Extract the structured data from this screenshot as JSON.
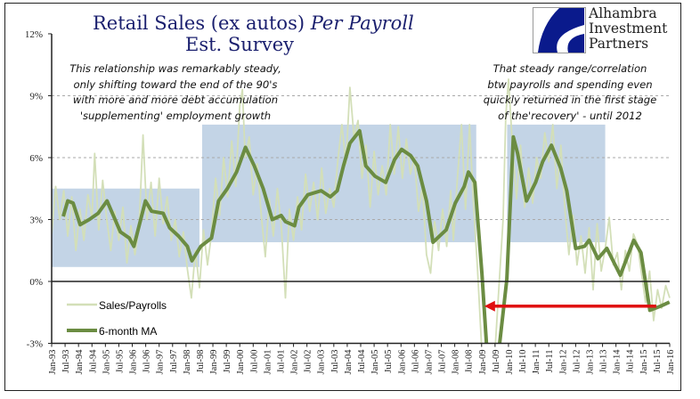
{
  "title_main": "Retail Sales (ex autos) ",
  "title_italic": "Per Payroll",
  "title_sub": "Est. Survey",
  "note_left": [
    "This relationship was remarkably steady,",
    "only shifting toward the end of the 90's",
    "with more and  more debt accumulation",
    "'supplementing' employment growth"
  ],
  "note_right": [
    "That steady range/correlation",
    "btw payrolls and spending even",
    "quickly returned in the first stage",
    "of the'recovery' - until 2012"
  ],
  "logo": {
    "lines": [
      "Alhambra",
      "Investment",
      "Partners"
    ],
    "color": "#0a1a8c"
  },
  "chart_data": {
    "type": "line",
    "ylim": [
      -3,
      12
    ],
    "xlim": [
      1993.0,
      2016.0
    ],
    "y_ticks": [
      -3,
      0,
      3,
      6,
      9,
      12
    ],
    "y_tick_labels": [
      "-3%",
      "0%",
      "3%",
      "6%",
      "9%",
      "12%"
    ],
    "x_tick_labels": [
      "Jan-93",
      "Jul-93",
      "Jan-94",
      "Jul-94",
      "Jan-95",
      "Jul-95",
      "Jan-96",
      "Jul-96",
      "Jan-97",
      "Jul-97",
      "Jan-98",
      "Jul-98",
      "Jan-99",
      "Jul-99",
      "Jan-00",
      "Jul-00",
      "Jan-01",
      "Jul-01",
      "Jan-02",
      "Jul-02",
      "Jan-03",
      "Jul-03",
      "Jan-04",
      "Jul-04",
      "Jan-05",
      "Jul-05",
      "Jan-06",
      "Jul-06",
      "Jan-07",
      "Jul-07",
      "Jan-08",
      "Jul-08",
      "Jan-09",
      "Jul-09",
      "Jan-10",
      "Jul-10",
      "Jan-11",
      "Jul-11",
      "Jan-12",
      "Jul-12",
      "Jan-13",
      "Jul-13",
      "Jan-14",
      "Jul-14",
      "Jan-15",
      "Jul-15",
      "Jan-16"
    ],
    "grid": "dashed horizontal at 3% intervals",
    "legend_placement": "bottom-left",
    "series": [
      {
        "name": "Sales/Payrolls",
        "color": "#d3dfb8",
        "points": [
          [
            1993.0,
            2.3
          ],
          [
            1993.15,
            4.6
          ],
          [
            1993.3,
            3.0
          ],
          [
            1993.45,
            4.4
          ],
          [
            1993.6,
            2.2
          ],
          [
            1993.75,
            4.1
          ],
          [
            1993.9,
            1.5
          ],
          [
            1994.05,
            3.5
          ],
          [
            1994.2,
            2.0
          ],
          [
            1994.35,
            4.2
          ],
          [
            1994.5,
            3.1
          ],
          [
            1994.6,
            6.2
          ],
          [
            1994.75,
            2.5
          ],
          [
            1994.9,
            4.9
          ],
          [
            1995.05,
            3.0
          ],
          [
            1995.2,
            1.5
          ],
          [
            1995.35,
            3.4
          ],
          [
            1995.5,
            2.0
          ],
          [
            1995.65,
            3.6
          ],
          [
            1995.8,
            0.9
          ],
          [
            1995.95,
            2.7
          ],
          [
            1996.1,
            1.3
          ],
          [
            1996.25,
            2.6
          ],
          [
            1996.4,
            7.1
          ],
          [
            1996.55,
            3.0
          ],
          [
            1996.7,
            4.8
          ],
          [
            1996.85,
            2.2
          ],
          [
            1997.0,
            5.0
          ],
          [
            1997.15,
            2.8
          ],
          [
            1997.3,
            4.1
          ],
          [
            1997.45,
            2.0
          ],
          [
            1997.6,
            3.0
          ],
          [
            1997.75,
            1.2
          ],
          [
            1997.9,
            2.4
          ],
          [
            1998.05,
            0.6
          ],
          [
            1998.2,
            -0.8
          ],
          [
            1998.35,
            1.5
          ],
          [
            1998.5,
            -0.3
          ],
          [
            1998.65,
            2.5
          ],
          [
            1998.8,
            0.8
          ],
          [
            1998.95,
            2.3
          ],
          [
            1999.1,
            5.0
          ],
          [
            1999.25,
            3.2
          ],
          [
            1999.4,
            6.0
          ],
          [
            1999.55,
            4.1
          ],
          [
            1999.7,
            6.8
          ],
          [
            1999.85,
            4.6
          ],
          [
            2000.0,
            8.5
          ],
          [
            2000.1,
            9.3
          ],
          [
            2000.2,
            6.0
          ],
          [
            2000.35,
            7.0
          ],
          [
            2000.5,
            4.2
          ],
          [
            2000.65,
            5.7
          ],
          [
            2000.8,
            3.2
          ],
          [
            2000.95,
            1.2
          ],
          [
            2001.1,
            4.0
          ],
          [
            2001.25,
            2.2
          ],
          [
            2001.4,
            4.5
          ],
          [
            2001.55,
            2.6
          ],
          [
            2001.7,
            -0.8
          ],
          [
            2001.85,
            3.5
          ],
          [
            2002.0,
            2.0
          ],
          [
            2002.15,
            4.1
          ],
          [
            2002.3,
            2.5
          ],
          [
            2002.45,
            5.2
          ],
          [
            2002.6,
            3.4
          ],
          [
            2002.75,
            4.8
          ],
          [
            2002.9,
            3.0
          ],
          [
            2003.05,
            5.5
          ],
          [
            2003.2,
            3.3
          ],
          [
            2003.35,
            4.5
          ],
          [
            2003.5,
            3.6
          ],
          [
            2003.65,
            5.9
          ],
          [
            2003.8,
            7.6
          ],
          [
            2003.95,
            5.7
          ],
          [
            2004.1,
            9.4
          ],
          [
            2004.25,
            7.0
          ],
          [
            2004.4,
            7.8
          ],
          [
            2004.55,
            5.0
          ],
          [
            2004.7,
            6.6
          ],
          [
            2004.85,
            3.6
          ],
          [
            2005.0,
            6.3
          ],
          [
            2005.15,
            4.2
          ],
          [
            2005.3,
            5.6
          ],
          [
            2005.45,
            4.2
          ],
          [
            2005.6,
            7.6
          ],
          [
            2005.75,
            5.2
          ],
          [
            2005.9,
            7.5
          ],
          [
            2006.05,
            5.0
          ],
          [
            2006.2,
            6.9
          ],
          [
            2006.35,
            5.2
          ],
          [
            2006.5,
            6.0
          ],
          [
            2006.65,
            3.4
          ],
          [
            2006.8,
            4.6
          ],
          [
            2006.95,
            1.3
          ],
          [
            2007.1,
            0.4
          ],
          [
            2007.25,
            2.9
          ],
          [
            2007.4,
            1.5
          ],
          [
            2007.55,
            3.5
          ],
          [
            2007.7,
            1.7
          ],
          [
            2007.85,
            4.4
          ],
          [
            2007.95,
            2.0
          ],
          [
            2008.1,
            5.0
          ],
          [
            2008.25,
            7.6
          ],
          [
            2008.4,
            3.5
          ],
          [
            2008.55,
            7.6
          ],
          [
            2008.7,
            3.7
          ],
          [
            2008.85,
            0.5
          ],
          [
            2009.0,
            -3.2
          ],
          [
            2009.5,
            -3.3
          ],
          [
            2009.8,
            3.0
          ],
          [
            2009.9,
            8.0
          ],
          [
            2010.0,
            9.8
          ],
          [
            2010.15,
            6.5
          ],
          [
            2010.3,
            4.0
          ],
          [
            2010.45,
            6.6
          ],
          [
            2010.6,
            3.6
          ],
          [
            2010.75,
            5.5
          ],
          [
            2010.9,
            3.8
          ],
          [
            2011.05,
            6.0
          ],
          [
            2011.2,
            5.0
          ],
          [
            2011.35,
            7.2
          ],
          [
            2011.5,
            5.8
          ],
          [
            2011.65,
            7.6
          ],
          [
            2011.8,
            4.5
          ],
          [
            2011.95,
            6.6
          ],
          [
            2012.1,
            3.5
          ],
          [
            2012.25,
            1.3
          ],
          [
            2012.4,
            3.2
          ],
          [
            2012.55,
            0.8
          ],
          [
            2012.7,
            2.2
          ],
          [
            2012.85,
            0.4
          ],
          [
            2013.0,
            2.6
          ],
          [
            2013.15,
            -0.4
          ],
          [
            2013.3,
            2.8
          ],
          [
            2013.45,
            0.5
          ],
          [
            2013.6,
            1.6
          ],
          [
            2013.75,
            3.1
          ],
          [
            2013.9,
            0.8
          ],
          [
            2014.05,
            1.4
          ],
          [
            2014.2,
            -0.4
          ],
          [
            2014.35,
            1.5
          ],
          [
            2014.5,
            0.5
          ],
          [
            2014.65,
            2.3
          ],
          [
            2014.8,
            1.8
          ],
          [
            2014.95,
            0.4
          ],
          [
            2015.1,
            -1.0
          ],
          [
            2015.25,
            0.5
          ],
          [
            2015.4,
            -1.9
          ],
          [
            2015.55,
            -0.4
          ],
          [
            2015.7,
            -1.3
          ],
          [
            2015.85,
            -0.2
          ],
          [
            2016.0,
            -0.8
          ]
        ]
      },
      {
        "name": "6-month MA",
        "color": "#6b8c42",
        "points": [
          [
            1993.43,
            3.15
          ],
          [
            1993.6,
            3.9
          ],
          [
            1993.8,
            3.8
          ],
          [
            1994.06,
            2.75
          ],
          [
            1994.4,
            3.0
          ],
          [
            1994.73,
            3.3
          ],
          [
            1995.06,
            3.9
          ],
          [
            1995.56,
            2.4
          ],
          [
            1995.89,
            2.1
          ],
          [
            1996.06,
            1.7
          ],
          [
            1996.49,
            3.9
          ],
          [
            1996.72,
            3.4
          ],
          [
            1997.15,
            3.3
          ],
          [
            1997.39,
            2.6
          ],
          [
            1997.72,
            2.2
          ],
          [
            1998.05,
            1.7
          ],
          [
            1998.22,
            1.0
          ],
          [
            1998.55,
            1.7
          ],
          [
            1998.95,
            2.1
          ],
          [
            1999.21,
            3.9
          ],
          [
            1999.54,
            4.5
          ],
          [
            1999.88,
            5.3
          ],
          [
            2000.21,
            6.5
          ],
          [
            2000.54,
            5.6
          ],
          [
            2000.87,
            4.5
          ],
          [
            2001.21,
            3.0
          ],
          [
            2001.54,
            3.2
          ],
          [
            2001.7,
            2.9
          ],
          [
            2002.04,
            2.7
          ],
          [
            2002.2,
            3.6
          ],
          [
            2002.53,
            4.2
          ],
          [
            2003.03,
            4.4
          ],
          [
            2003.37,
            4.1
          ],
          [
            2003.63,
            4.4
          ],
          [
            2003.86,
            5.6
          ],
          [
            2004.1,
            6.7
          ],
          [
            2004.46,
            7.3
          ],
          [
            2004.69,
            5.6
          ],
          [
            2005.03,
            5.1
          ],
          [
            2005.43,
            4.8
          ],
          [
            2005.76,
            5.9
          ],
          [
            2006.02,
            6.4
          ],
          [
            2006.36,
            6.1
          ],
          [
            2006.62,
            5.6
          ],
          [
            2006.95,
            3.9
          ],
          [
            2007.19,
            1.9
          ],
          [
            2007.68,
            2.5
          ],
          [
            2008.02,
            3.8
          ],
          [
            2008.35,
            4.6
          ],
          [
            2008.51,
            5.3
          ],
          [
            2008.75,
            4.8
          ],
          [
            2009.01,
            0.4
          ],
          [
            2009.18,
            -3.0
          ],
          [
            2009.41,
            -6.0
          ],
          [
            2009.68,
            -2.9
          ],
          [
            2009.94,
            0.1
          ],
          [
            2010.18,
            7.0
          ],
          [
            2010.34,
            6.2
          ],
          [
            2010.67,
            3.9
          ],
          [
            2011.01,
            4.8
          ],
          [
            2011.27,
            5.8
          ],
          [
            2011.6,
            6.6
          ],
          [
            2011.94,
            5.5
          ],
          [
            2012.17,
            4.4
          ],
          [
            2012.5,
            1.6
          ],
          [
            2012.83,
            1.7
          ],
          [
            2013.0,
            2.0
          ],
          [
            2013.33,
            1.1
          ],
          [
            2013.66,
            1.6
          ],
          [
            2014.16,
            0.3
          ],
          [
            2014.66,
            2.0
          ],
          [
            2014.93,
            1.4
          ],
          [
            2015.26,
            -1.4
          ],
          [
            2015.66,
            -1.2
          ],
          [
            2015.99,
            -1.0
          ]
        ]
      }
    ],
    "shaded_ranges": [
      {
        "x": [
          1993.0,
          1998.5
        ],
        "y": [
          0.7,
          4.5
        ]
      },
      {
        "x": [
          1998.6,
          2008.8
        ],
        "y": [
          1.9,
          7.6
        ]
      },
      {
        "x": [
          2009.95,
          2013.6
        ],
        "y": [
          1.9,
          7.6
        ]
      }
    ],
    "shade_color": "#a9c2dc",
    "arrow": {
      "from": [
        2015.5,
        -1.2
      ],
      "to": [
        2009.1,
        -1.2
      ],
      "color": "#e01010"
    }
  }
}
